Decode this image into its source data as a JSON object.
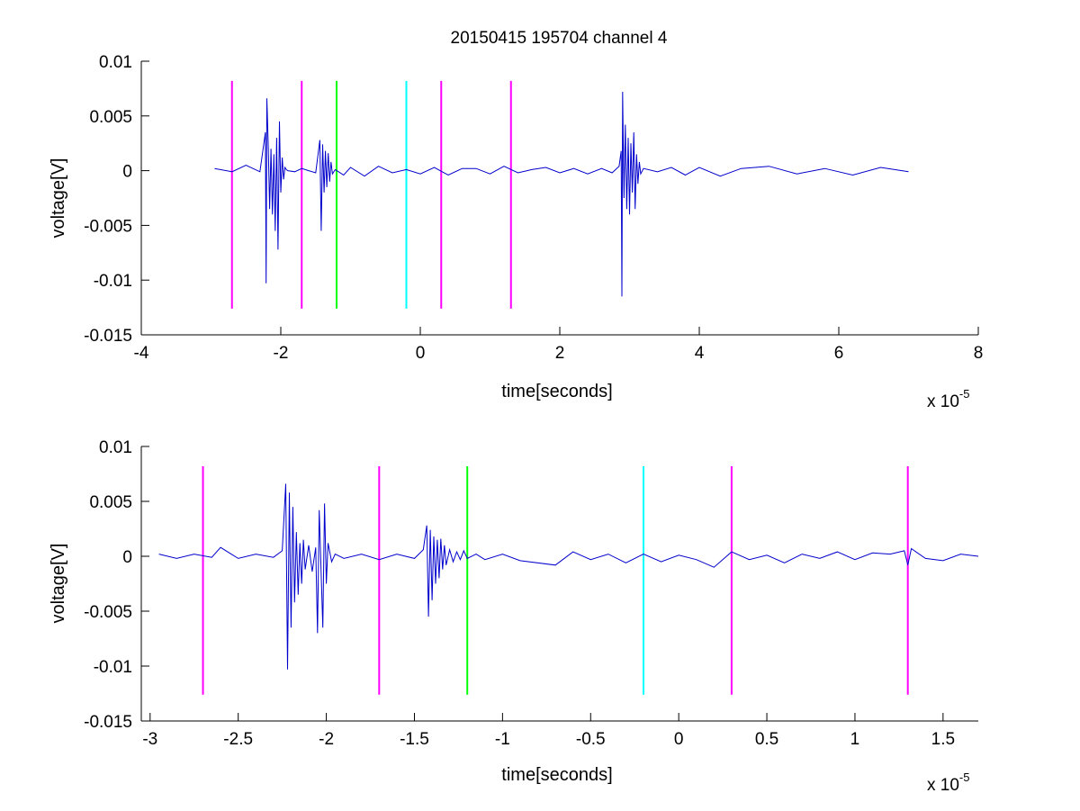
{
  "chart_data": [
    {
      "type": "line",
      "title": "20150415 195704 channel 4",
      "xlabel": "time[seconds]",
      "ylabel": "voltage[V]",
      "x_exponent_label": "x 10",
      "x_exponent": "-5",
      "xlim": [
        -4,
        8
      ],
      "ylim": [
        -0.015,
        0.01
      ],
      "x_ticks": [
        -4,
        -2,
        0,
        2,
        4,
        6,
        8
      ],
      "x_tick_labels": [
        "-4",
        "-2",
        "0",
        "2",
        "4",
        "6",
        "8"
      ],
      "y_ticks": [
        0.01,
        0.005,
        0,
        -0.005,
        -0.01,
        -0.015
      ],
      "y_tick_labels": [
        "0.01",
        "0.005",
        "0",
        "-0.005",
        "-0.01",
        "-0.015"
      ],
      "grid": false,
      "series": [
        {
          "color": "#0000cc",
          "x": [
            -2.95,
            -2.7,
            -2.5,
            -2.3,
            -2.22,
            -2.21,
            -2.2,
            -2.18,
            -2.16,
            -2.14,
            -2.12,
            -2.1,
            -2.08,
            -2.06,
            -2.04,
            -2.02,
            -2.0,
            -1.98,
            -1.96,
            -1.94,
            -1.92,
            -1.9,
            -1.8,
            -1.7,
            -1.6,
            -1.5,
            -1.44,
            -1.42,
            -1.4,
            -1.38,
            -1.36,
            -1.34,
            -1.32,
            -1.3,
            -1.28,
            -1.26,
            -1.22,
            -1.1,
            -1.0,
            -0.8,
            -0.6,
            -0.4,
            -0.2,
            0.0,
            0.2,
            0.4,
            0.6,
            0.8,
            1.0,
            1.2,
            1.4,
            1.6,
            1.8,
            2.0,
            2.2,
            2.4,
            2.6,
            2.75,
            2.85,
            2.88,
            2.89,
            2.9,
            2.92,
            2.94,
            2.96,
            2.98,
            3.0,
            3.02,
            3.04,
            3.06,
            3.08,
            3.1,
            3.12,
            3.14,
            3.16,
            3.2,
            3.4,
            3.6,
            3.8,
            4.0,
            4.3,
            4.6,
            5.0,
            5.4,
            5.8,
            6.2,
            6.6,
            7.0
          ],
          "y": [
            0.0002,
            -0.0001,
            0.0005,
            -0.0001,
            0.0035,
            -0.0103,
            0.0066,
            0.0025,
            -0.0035,
            0.002,
            -0.004,
            0.0015,
            -0.0055,
            0.003,
            -0.0072,
            0.0045,
            -0.002,
            0.0012,
            -0.0008,
            0.0003,
            0.0001,
            0.0,
            -0.0001,
            0.0002,
            0.0,
            -0.0002,
            0.0028,
            -0.0055,
            0.0024,
            -0.002,
            0.0018,
            -0.0015,
            0.0016,
            -0.001,
            0.0008,
            -0.0003,
            0.0001,
            -0.0004,
            0.0003,
            -0.0005,
            0.0004,
            -0.0002,
            0.0001,
            -0.0003,
            0.0003,
            -0.0004,
            0.0002,
            0.0002,
            -0.0003,
            0.0004,
            -0.0002,
            0.0001,
            0.0003,
            -0.0002,
            0.0002,
            -0.0003,
            0.0002,
            -0.0002,
            0.0004,
            0.0018,
            -0.0115,
            0.0072,
            -0.0025,
            0.0042,
            -0.0035,
            0.003,
            -0.004,
            0.0025,
            -0.002,
            0.0035,
            -0.0035,
            0.0015,
            -0.0012,
            0.0008,
            -0.0003,
            0.0002,
            -0.0001,
            0.0003,
            -0.0004,
            0.0003,
            -0.0005,
            0.0002,
            0.0004,
            -0.0003,
            0.0002,
            -0.0004,
            0.0003,
            -0.0001
          ]
        }
      ],
      "markers": [
        {
          "x": -2.7,
          "color": "#ff00ff"
        },
        {
          "x": -1.7,
          "color": "#ff00ff"
        },
        {
          "x": -1.2,
          "color": "#00ff00"
        },
        {
          "x": -0.2,
          "color": "#00ffff"
        },
        {
          "x": 0.3,
          "color": "#ff00ff"
        },
        {
          "x": 1.3,
          "color": "#ff00ff"
        }
      ],
      "marker_yrange": [
        -0.0126,
        0.0082
      ]
    },
    {
      "type": "line",
      "xlabel": "time[seconds]",
      "ylabel": "voltage[V]",
      "x_exponent_label": "x 10",
      "x_exponent": "-5",
      "xlim": [
        -3.05,
        1.7
      ],
      "ylim": [
        -0.015,
        0.01
      ],
      "x_ticks": [
        -3,
        -2.5,
        -2,
        -1.5,
        -1,
        -0.5,
        0,
        0.5,
        1,
        1.5
      ],
      "x_tick_labels": [
        "-3",
        "-2.5",
        "-2",
        "-1.5",
        "-1",
        "-0.5",
        "0",
        "0.5",
        "1",
        "1.5"
      ],
      "y_ticks": [
        0.01,
        0.005,
        0,
        -0.005,
        -0.01,
        -0.015
      ],
      "y_tick_labels": [
        "0.01",
        "0.005",
        "0",
        "-0.005",
        "-0.01",
        "-0.015"
      ],
      "grid": false,
      "series": [
        {
          "color": "#0000cc",
          "x": [
            -2.95,
            -2.85,
            -2.75,
            -2.65,
            -2.6,
            -2.5,
            -2.4,
            -2.3,
            -2.25,
            -2.23,
            -2.22,
            -2.21,
            -2.2,
            -2.19,
            -2.18,
            -2.17,
            -2.16,
            -2.15,
            -2.14,
            -2.13,
            -2.12,
            -2.1,
            -2.08,
            -2.06,
            -2.05,
            -2.04,
            -2.02,
            -2.01,
            -2.0,
            -1.99,
            -1.97,
            -1.95,
            -1.9,
            -1.8,
            -1.7,
            -1.6,
            -1.5,
            -1.45,
            -1.43,
            -1.42,
            -1.41,
            -1.4,
            -1.39,
            -1.38,
            -1.37,
            -1.36,
            -1.35,
            -1.34,
            -1.33,
            -1.32,
            -1.3,
            -1.28,
            -1.26,
            -1.24,
            -1.22,
            -1.2,
            -1.15,
            -1.1,
            -1.0,
            -0.9,
            -0.7,
            -0.6,
            -0.5,
            -0.4,
            -0.3,
            -0.2,
            -0.1,
            0.0,
            0.1,
            0.2,
            0.3,
            0.4,
            0.5,
            0.6,
            0.7,
            0.8,
            0.9,
            1.0,
            1.1,
            1.2,
            1.28,
            1.3,
            1.32,
            1.4,
            1.5,
            1.6,
            1.7
          ],
          "y": [
            0.0002,
            -0.0002,
            0.0002,
            -0.0001,
            0.0008,
            -0.0002,
            0.0002,
            -0.0001,
            0.0005,
            0.0066,
            -0.0103,
            0.0058,
            -0.0065,
            0.0045,
            -0.0042,
            0.0022,
            -0.0035,
            0.0012,
            -0.0025,
            0.0015,
            -0.0012,
            0.001,
            -0.0014,
            0.0008,
            -0.007,
            0.0042,
            -0.0065,
            0.0048,
            -0.0025,
            0.0012,
            -0.0005,
            0.0002,
            -0.0002,
            0.0002,
            -0.0003,
            0.0002,
            -0.0002,
            0.0006,
            0.0028,
            -0.0055,
            0.0024,
            -0.004,
            0.0018,
            -0.0025,
            0.0015,
            -0.002,
            0.0016,
            -0.0012,
            0.001,
            -0.0008,
            0.0006,
            -0.0005,
            0.0004,
            -0.0003,
            0.0005,
            -0.0002,
            0.0002,
            -0.0003,
            0.0002,
            -0.0004,
            -0.0008,
            0.0004,
            -0.0003,
            0.0002,
            -0.0006,
            0.0002,
            -0.0005,
            0.0001,
            -0.0003,
            -0.001,
            0.0004,
            -0.0003,
            0.0001,
            -0.0006,
            0.0002,
            -0.0002,
            0.0004,
            -0.0003,
            0.0003,
            0.0002,
            0.0005,
            -0.0008,
            0.0007,
            -0.0002,
            -0.0004,
            0.0002,
            0.0
          ]
        }
      ],
      "markers": [
        {
          "x": -2.7,
          "color": "#ff00ff"
        },
        {
          "x": -1.7,
          "color": "#ff00ff"
        },
        {
          "x": -1.2,
          "color": "#00ff00"
        },
        {
          "x": -0.2,
          "color": "#00ffff"
        },
        {
          "x": 0.3,
          "color": "#ff00ff"
        },
        {
          "x": 1.3,
          "color": "#ff00ff"
        }
      ],
      "marker_yrange": [
        -0.0126,
        0.0082
      ]
    }
  ]
}
